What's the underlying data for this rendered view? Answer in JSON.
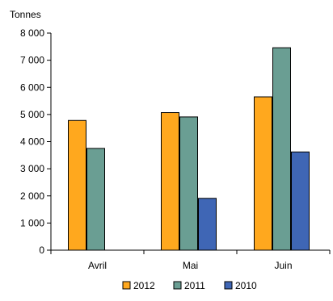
{
  "chart_data": {
    "type": "bar",
    "title": "",
    "xlabel": "",
    "ylabel": "Tonnes",
    "categories": [
      "Avril",
      "Mai",
      "Juin"
    ],
    "series": [
      {
        "name": "2012",
        "values": [
          4780,
          5070,
          5650
        ],
        "color": "#FFA81E"
      },
      {
        "name": "2011",
        "values": [
          3750,
          4910,
          7460
        ],
        "color": "#6A9E93"
      },
      {
        "name": "2010",
        "values": [
          null,
          1910,
          3620
        ],
        "color": "#3F66B5"
      }
    ],
    "ylim": [
      0,
      8000
    ],
    "yticks": [
      0,
      1000,
      2000,
      3000,
      4000,
      5000,
      6000,
      7000,
      8000
    ],
    "ytick_labels": [
      "0",
      "1 000",
      "2 000",
      "3 000",
      "4 000",
      "5 000",
      "6 000",
      "7 000",
      "8 000"
    ],
    "grid": false,
    "legend_position": "bottom"
  }
}
